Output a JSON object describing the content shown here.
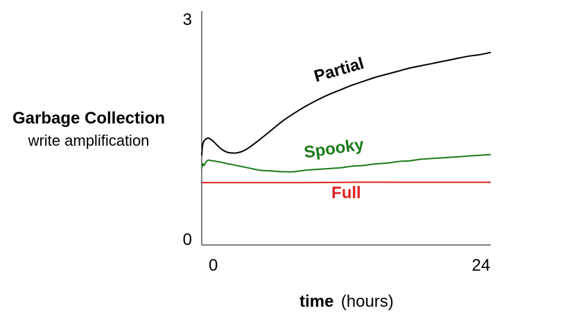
{
  "chart_data": {
    "type": "line",
    "ylabel_line1": "Garbage Collection",
    "ylabel_line2": "write amplification",
    "xlabel_bold": "time",
    "xlabel_unit": "(hours)",
    "xlim": [
      -1,
      24
    ],
    "ylim": [
      0,
      3
    ],
    "x_ticks": [
      0,
      24
    ],
    "y_ticks": [
      0,
      3
    ],
    "x_tick_labels": [
      "0",
      "24"
    ],
    "y_tick_labels": [
      "0",
      "3"
    ],
    "grid": false,
    "series": [
      {
        "name": "Partial",
        "color": "#000000",
        "x": [
          -1,
          -0.9,
          -0.7,
          -0.4,
          0,
          0.4,
          0.8,
          1.2,
          1.6,
          2,
          2.5,
          3,
          4,
          5,
          6,
          7,
          8,
          9,
          10,
          11,
          12,
          13,
          14,
          15,
          16,
          17,
          18,
          19,
          20,
          21,
          22,
          23,
          24
        ],
        "y": [
          1.15,
          1.3,
          1.35,
          1.37,
          1.33,
          1.27,
          1.22,
          1.19,
          1.18,
          1.18,
          1.2,
          1.24,
          1.35,
          1.47,
          1.59,
          1.69,
          1.78,
          1.86,
          1.93,
          1.99,
          2.05,
          2.1,
          2.15,
          2.19,
          2.23,
          2.27,
          2.3,
          2.33,
          2.36,
          2.39,
          2.42,
          2.44,
          2.47
        ]
      },
      {
        "name": "Spooky",
        "color": "#1a7a1a",
        "x": [
          -1,
          -0.9,
          -0.8,
          -0.6,
          -0.4,
          -0.2,
          0,
          1,
          2,
          3,
          4,
          5,
          6,
          7,
          8,
          9,
          10,
          11,
          12,
          13,
          14,
          15,
          16,
          17,
          18,
          19,
          20,
          21,
          22,
          23,
          24
        ],
        "y": [
          0.98,
          1.04,
          1.02,
          1.07,
          1.09,
          1.08,
          1.08,
          1.05,
          1.02,
          0.99,
          0.96,
          0.95,
          0.94,
          0.94,
          0.96,
          0.97,
          0.98,
          0.99,
          1.01,
          1.02,
          1.04,
          1.05,
          1.07,
          1.08,
          1.1,
          1.11,
          1.12,
          1.13,
          1.14,
          1.15,
          1.16
        ]
      },
      {
        "name": "Full",
        "color": "#dd2222",
        "x": [
          -1,
          0,
          4,
          8,
          12,
          16,
          20,
          24
        ],
        "y": [
          0.8,
          0.8,
          0.8,
          0.8,
          0.805,
          0.805,
          0.805,
          0.805
        ]
      }
    ],
    "annotations": [
      {
        "series": "Partial",
        "text": "Partial",
        "x": 11,
        "y": 2.18,
        "rotate": -16,
        "color": "#000000"
      },
      {
        "series": "Spooky",
        "text": "Spooky",
        "x": 10.5,
        "y": 1.17,
        "rotate": -8,
        "color": "#1a7a1a"
      },
      {
        "series": "Full",
        "text": "Full",
        "x": 11.5,
        "y": 0.6,
        "rotate": 0,
        "color": "#dd2222"
      }
    ]
  }
}
